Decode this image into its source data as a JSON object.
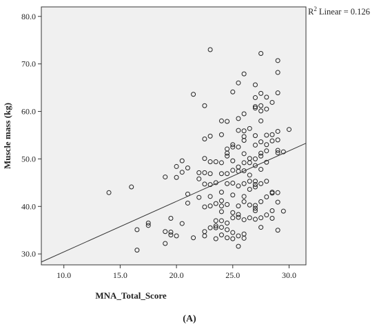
{
  "chart_data": {
    "type": "scatter",
    "xlabel": "MNA_Total_Score",
    "ylabel": "Muscle mass (kg)",
    "caption": "(A)",
    "annotation": {
      "prefix": "R",
      "superscript": "2",
      "text": "Linear = 0.126"
    },
    "xlim": [
      8.0,
      31.5
    ],
    "ylim": [
      27.7,
      82.0
    ],
    "x_ticks": [
      "10.0",
      "15.0",
      "20.0",
      "25.0",
      "30.0"
    ],
    "y_ticks": [
      "30.0",
      "40.0",
      "50.0",
      "60.0",
      "70.0",
      "80.0"
    ],
    "grid": false,
    "plot_background": "#f0f0f0",
    "marker_color": "#222222",
    "fit_line": {
      "x": [
        8.0,
        31.5
      ],
      "y": [
        28.3,
        53.3
      ]
    },
    "points": [
      [
        14.0,
        42.9
      ],
      [
        16.0,
        44.1
      ],
      [
        16.5,
        35.1
      ],
      [
        16.5,
        30.8
      ],
      [
        17.5,
        36.5
      ],
      [
        17.5,
        36.0
      ],
      [
        19.0,
        34.7
      ],
      [
        19.0,
        32.2
      ],
      [
        19.0,
        46.2
      ],
      [
        19.5,
        37.5
      ],
      [
        19.5,
        34.6
      ],
      [
        19.5,
        34.0
      ],
      [
        20.0,
        48.4
      ],
      [
        20.0,
        46.1
      ],
      [
        20.0,
        33.8
      ],
      [
        20.5,
        49.6
      ],
      [
        20.5,
        47.2
      ],
      [
        20.5,
        36.4
      ],
      [
        21.0,
        48.1
      ],
      [
        21.0,
        42.6
      ],
      [
        21.0,
        40.7
      ],
      [
        21.5,
        63.6
      ],
      [
        21.5,
        33.4
      ],
      [
        22.0,
        47.1
      ],
      [
        22.0,
        45.8
      ],
      [
        22.0,
        41.9
      ],
      [
        22.5,
        61.2
      ],
      [
        22.5,
        54.2
      ],
      [
        22.5,
        50.1
      ],
      [
        22.5,
        47.1
      ],
      [
        22.5,
        44.7
      ],
      [
        22.5,
        39.9
      ],
      [
        22.5,
        34.7
      ],
      [
        22.5,
        33.8
      ],
      [
        23.0,
        73.0
      ],
      [
        23.0,
        54.8
      ],
      [
        23.0,
        49.4
      ],
      [
        23.0,
        46.9
      ],
      [
        23.0,
        44.6
      ],
      [
        23.0,
        42.1
      ],
      [
        23.0,
        40.1
      ],
      [
        23.0,
        35.5
      ],
      [
        23.5,
        49.4
      ],
      [
        23.5,
        45.0
      ],
      [
        23.5,
        40.6
      ],
      [
        23.5,
        37.0
      ],
      [
        23.5,
        35.9
      ],
      [
        23.5,
        35.5
      ],
      [
        23.5,
        33.2
      ],
      [
        24.0,
        58.0
      ],
      [
        24.0,
        55.1
      ],
      [
        24.0,
        49.2
      ],
      [
        24.0,
        46.9
      ],
      [
        24.0,
        43.0
      ],
      [
        24.0,
        41.2
      ],
      [
        24.0,
        40.1
      ],
      [
        24.0,
        38.9
      ],
      [
        24.0,
        37.0
      ],
      [
        24.0,
        35.6
      ],
      [
        24.0,
        34.0
      ],
      [
        24.5,
        57.9
      ],
      [
        24.5,
        52.1
      ],
      [
        24.5,
        51.2
      ],
      [
        24.5,
        50.6
      ],
      [
        24.5,
        46.9
      ],
      [
        24.5,
        44.8
      ],
      [
        24.5,
        40.4
      ],
      [
        24.5,
        36.5
      ],
      [
        24.5,
        35.1
      ],
      [
        24.5,
        33.4
      ],
      [
        25.0,
        64.1
      ],
      [
        25.0,
        53.0
      ],
      [
        25.0,
        52.5
      ],
      [
        25.0,
        49.6
      ],
      [
        25.0,
        47.6
      ],
      [
        25.0,
        44.9
      ],
      [
        25.0,
        42.4
      ],
      [
        25.0,
        38.7
      ],
      [
        25.0,
        37.6
      ],
      [
        25.0,
        34.5
      ],
      [
        25.0,
        33.2
      ],
      [
        25.5,
        66.0
      ],
      [
        25.5,
        58.5
      ],
      [
        25.5,
        56.0
      ],
      [
        25.5,
        52.5
      ],
      [
        25.5,
        48.3
      ],
      [
        25.5,
        47.4
      ],
      [
        25.5,
        44.3
      ],
      [
        25.5,
        40.1
      ],
      [
        25.5,
        38.3
      ],
      [
        25.5,
        37.7
      ],
      [
        25.5,
        33.8
      ],
      [
        25.5,
        31.6
      ],
      [
        26.0,
        67.9
      ],
      [
        26.0,
        59.5
      ],
      [
        26.0,
        55.9
      ],
      [
        26.0,
        54.7
      ],
      [
        26.0,
        53.9
      ],
      [
        26.0,
        51.1
      ],
      [
        26.0,
        49.2
      ],
      [
        26.0,
        47.5
      ],
      [
        26.0,
        44.8
      ],
      [
        26.0,
        42.1
      ],
      [
        26.0,
        41.0
      ],
      [
        26.0,
        37.2
      ],
      [
        26.0,
        34.2
      ],
      [
        26.0,
        33.3
      ],
      [
        26.5,
        56.4
      ],
      [
        26.5,
        50.1
      ],
      [
        26.5,
        49.2
      ],
      [
        26.5,
        46.6
      ],
      [
        26.5,
        45.3
      ],
      [
        26.5,
        43.6
      ],
      [
        26.5,
        40.3
      ],
      [
        26.5,
        37.6
      ],
      [
        27.0,
        65.6
      ],
      [
        27.0,
        62.9
      ],
      [
        27.0,
        61.0
      ],
      [
        27.0,
        60.7
      ],
      [
        27.0,
        54.9
      ],
      [
        27.0,
        52.9
      ],
      [
        27.0,
        50.0
      ],
      [
        27.0,
        48.6
      ],
      [
        27.0,
        45.3
      ],
      [
        27.0,
        44.6
      ],
      [
        27.0,
        44.1
      ],
      [
        27.0,
        40.2
      ],
      [
        27.0,
        39.6
      ],
      [
        27.0,
        39.1
      ],
      [
        27.0,
        37.3
      ],
      [
        27.5,
        72.2
      ],
      [
        27.5,
        63.8
      ],
      [
        27.5,
        61.2
      ],
      [
        27.5,
        60.1
      ],
      [
        27.5,
        58.0
      ],
      [
        27.5,
        53.6
      ],
      [
        27.5,
        51.2
      ],
      [
        27.5,
        50.6
      ],
      [
        27.5,
        47.8
      ],
      [
        27.5,
        44.8
      ],
      [
        27.5,
        41.0
      ],
      [
        27.5,
        37.6
      ],
      [
        27.5,
        35.6
      ],
      [
        28.0,
        63.0
      ],
      [
        28.0,
        60.5
      ],
      [
        28.0,
        55.0
      ],
      [
        28.0,
        53.0
      ],
      [
        28.0,
        51.7
      ],
      [
        28.0,
        49.3
      ],
      [
        28.0,
        45.3
      ],
      [
        28.0,
        42.0
      ],
      [
        28.0,
        38.2
      ],
      [
        28.5,
        61.9
      ],
      [
        28.5,
        55.1
      ],
      [
        28.5,
        53.8
      ],
      [
        28.5,
        43.0
      ],
      [
        28.5,
        42.8
      ],
      [
        28.5,
        39.1
      ],
      [
        28.5,
        37.5
      ],
      [
        29.0,
        70.7
      ],
      [
        29.0,
        68.2
      ],
      [
        29.0,
        63.9
      ],
      [
        29.0,
        55.8
      ],
      [
        29.0,
        54.0
      ],
      [
        29.0,
        51.8
      ],
      [
        29.0,
        51.3
      ],
      [
        29.0,
        42.9
      ],
      [
        29.0,
        40.9
      ],
      [
        29.0,
        35.0
      ],
      [
        29.5,
        51.5
      ],
      [
        29.5,
        39.0
      ],
      [
        30.0,
        56.2
      ]
    ]
  }
}
